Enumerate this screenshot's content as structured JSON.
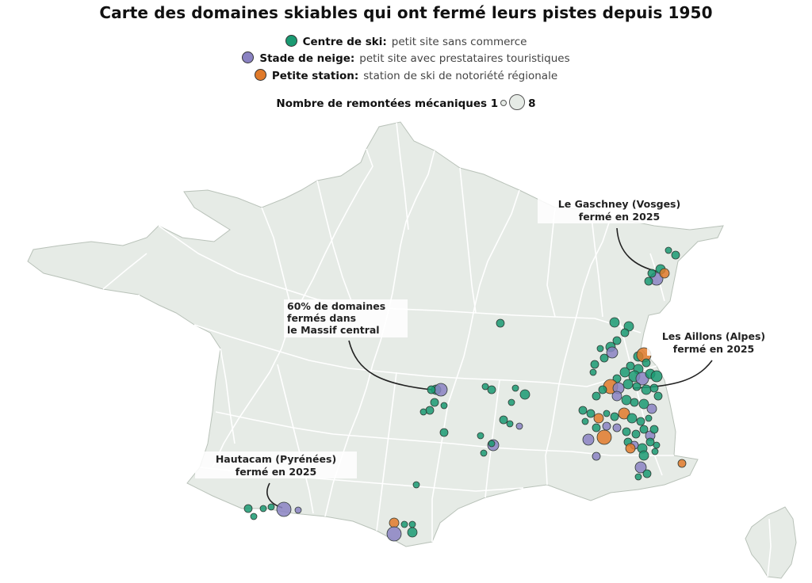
{
  "title": "Carte des domaines skiables qui ont fermé leurs pistes depuis 1950",
  "legend": [
    {
      "label": "Centre de ski:",
      "description": "petit site sans commerce",
      "color": "#1a9a72"
    },
    {
      "label": "Stade de neige:",
      "description": "petit site avec prestataires touristiques",
      "color": "#8a82c2"
    },
    {
      "label": "Petite station:",
      "description": "station de ski de notoriété régionale",
      "color": "#e07a2a"
    }
  ],
  "size_legend": {
    "label": "Nombre de remontées mécaniques",
    "min": "1",
    "max": "8"
  },
  "annotations": {
    "gaschney": [
      "Le Gaschney (Vosges)",
      "fermé en 2025"
    ],
    "massif": [
      "60% de domaines",
      "fermés dans",
      "le Massif central"
    ],
    "aillons": [
      "Les Aillons (Alpes)",
      "fermé en 2025"
    ],
    "hautacam": [
      "Hautacam (Pyrénées)",
      "fermé en 2025"
    ]
  },
  "colors": {
    "land": "#e6ebe6",
    "border": "#ffffff",
    "outline": "#b9c2b9"
  }
}
